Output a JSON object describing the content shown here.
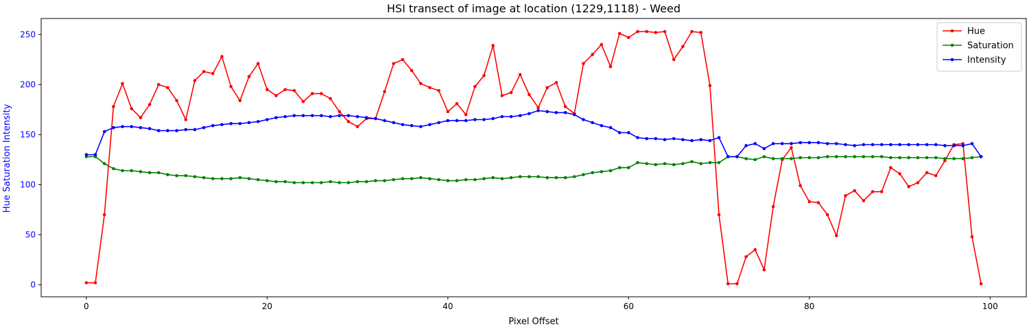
{
  "chart_data": {
    "type": "line",
    "title": "HSI transect of image at location (1229,1118) - Weed",
    "xlabel": "Pixel Offset",
    "ylabel": "Hue Saturation Intensity",
    "ylabel_color": "#0000ff",
    "xlim": [
      -5,
      104
    ],
    "ylim": [
      -12,
      266
    ],
    "xticks": [
      0,
      20,
      40,
      60,
      80,
      100
    ],
    "yticks": [
      0,
      50,
      100,
      150,
      200,
      250
    ],
    "grid": false,
    "legend_position": "top-right",
    "x": [
      0,
      1,
      2,
      3,
      4,
      5,
      6,
      7,
      8,
      9,
      10,
      11,
      12,
      13,
      14,
      15,
      16,
      17,
      18,
      19,
      20,
      21,
      22,
      23,
      24,
      25,
      26,
      27,
      28,
      29,
      30,
      31,
      32,
      33,
      34,
      35,
      36,
      37,
      38,
      39,
      40,
      41,
      42,
      43,
      44,
      45,
      46,
      47,
      48,
      49,
      50,
      51,
      52,
      53,
      54,
      55,
      56,
      57,
      58,
      59,
      60,
      61,
      62,
      63,
      64,
      65,
      66,
      67,
      68,
      69,
      70,
      71,
      72,
      73,
      74,
      75,
      76,
      77,
      78,
      79,
      80,
      81,
      82,
      83,
      84,
      85,
      86,
      87,
      88,
      89,
      90,
      91,
      92,
      93,
      94,
      95,
      96,
      97,
      98,
      99
    ],
    "series": [
      {
        "name": "Hue",
        "color": "#ff0000",
        "values": [
          2,
          2,
          70,
          178,
          201,
          176,
          167,
          180,
          200,
          197,
          184,
          165,
          204,
          213,
          211,
          228,
          198,
          184,
          208,
          221,
          195,
          189,
          195,
          194,
          183,
          191,
          191,
          186,
          173,
          163,
          158,
          166,
          166,
          193,
          221,
          225,
          214,
          201,
          197,
          194,
          173,
          181,
          170,
          198,
          209,
          239,
          189,
          192,
          210,
          190,
          177,
          197,
          202,
          178,
          171,
          221,
          230,
          240,
          218,
          251,
          247,
          253,
          253,
          252,
          253,
          225,
          238,
          253,
          252,
          199,
          70,
          1,
          1,
          28,
          35,
          15,
          78,
          125,
          137,
          99,
          83,
          82,
          70,
          49,
          89,
          94,
          84,
          93,
          93,
          117,
          111,
          98,
          102,
          112,
          109,
          124,
          140,
          141,
          48,
          1
        ]
      },
      {
        "name": "Saturation",
        "color": "#008000",
        "values": [
          128,
          128,
          121,
          116,
          114,
          114,
          113,
          112,
          112,
          110,
          109,
          109,
          108,
          107,
          106,
          106,
          106,
          107,
          106,
          105,
          104,
          103,
          103,
          102,
          102,
          102,
          102,
          103,
          102,
          102,
          103,
          103,
          104,
          104,
          105,
          106,
          106,
          107,
          106,
          105,
          104,
          104,
          105,
          105,
          106,
          107,
          106,
          107,
          108,
          108,
          108,
          107,
          107,
          107,
          108,
          110,
          112,
          113,
          114,
          117,
          117,
          122,
          121,
          120,
          121,
          120,
          121,
          123,
          121,
          122,
          122,
          128,
          128,
          126,
          125,
          128,
          126,
          126,
          126,
          127,
          127,
          127,
          128,
          128,
          128,
          128,
          128,
          128,
          128,
          127,
          127,
          127,
          127,
          127,
          127,
          126,
          126,
          126,
          127,
          128
        ]
      },
      {
        "name": "Intensity",
        "color": "#0000ff",
        "values": [
          130,
          130,
          153,
          157,
          158,
          158,
          157,
          156,
          154,
          154,
          154,
          155,
          155,
          157,
          159,
          160,
          161,
          161,
          162,
          163,
          165,
          167,
          168,
          169,
          169,
          169,
          169,
          168,
          169,
          169,
          168,
          167,
          166,
          164,
          162,
          160,
          159,
          158,
          160,
          162,
          164,
          164,
          164,
          165,
          165,
          166,
          168,
          168,
          169,
          171,
          174,
          173,
          172,
          172,
          170,
          165,
          162,
          159,
          157,
          152,
          152,
          147,
          146,
          146,
          145,
          146,
          145,
          144,
          145,
          144,
          147,
          128,
          128,
          139,
          141,
          136,
          141,
          141,
          141,
          142,
          142,
          142,
          141,
          141,
          140,
          139,
          140,
          140,
          140,
          140,
          140,
          140,
          140,
          140,
          140,
          139,
          139,
          139,
          141,
          128
        ]
      }
    ]
  }
}
